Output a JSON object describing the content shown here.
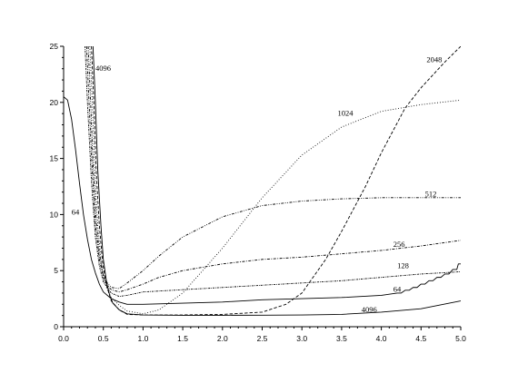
{
  "chart_data": {
    "type": "line",
    "title": "",
    "xlabel": "",
    "ylabel": "",
    "xlim": [
      0,
      5
    ],
    "ylim": [
      0,
      25
    ],
    "xticks": [
      "0.0",
      "0.5",
      "1.0",
      "1.5",
      "2.0",
      "2.5",
      "3.0",
      "3.5",
      "4.0",
      "4.5",
      "5.0"
    ],
    "yticks": [
      "0",
      "5",
      "10",
      "15",
      "20",
      "25"
    ],
    "grid": false,
    "legend": "none",
    "series": [
      {
        "name": "64",
        "dash": "solid",
        "label_text": "64",
        "points": [
          [
            0.0,
            20.5
          ],
          [
            0.05,
            20.2
          ],
          [
            0.1,
            18.5
          ],
          [
            0.15,
            15.8
          ],
          [
            0.2,
            12.8
          ],
          [
            0.25,
            10.0
          ],
          [
            0.3,
            7.8
          ],
          [
            0.35,
            6.0
          ],
          [
            0.4,
            4.8
          ],
          [
            0.45,
            3.8
          ],
          [
            0.5,
            3.1
          ],
          [
            0.6,
            2.5
          ],
          [
            0.7,
            2.2
          ],
          [
            0.8,
            2.0
          ],
          [
            1.0,
            2.0
          ],
          [
            1.5,
            2.1
          ],
          [
            2.0,
            2.2
          ],
          [
            2.5,
            2.4
          ],
          [
            3.0,
            2.5
          ],
          [
            3.5,
            2.6
          ],
          [
            4.0,
            2.8
          ],
          [
            4.2,
            3.0
          ],
          [
            4.25,
            3.0
          ],
          [
            4.3,
            3.25
          ],
          [
            4.35,
            3.25
          ],
          [
            4.4,
            3.5
          ],
          [
            4.45,
            3.5
          ],
          [
            4.5,
            3.8
          ],
          [
            4.55,
            3.8
          ],
          [
            4.6,
            4.1
          ],
          [
            4.65,
            4.1
          ],
          [
            4.7,
            4.4
          ],
          [
            4.75,
            4.4
          ],
          [
            4.8,
            4.7
          ],
          [
            4.85,
            4.7
          ],
          [
            4.9,
            5.1
          ],
          [
            4.95,
            5.1
          ],
          [
            4.97,
            5.6
          ],
          [
            5.0,
            5.6
          ]
        ]
      },
      {
        "name": "128",
        "dash": "dashdot-dense",
        "label_text": "128",
        "points": [
          [
            0.27,
            25
          ],
          [
            0.3,
            20.0
          ],
          [
            0.35,
            13.0
          ],
          [
            0.4,
            8.0
          ],
          [
            0.45,
            5.4
          ],
          [
            0.5,
            4.0
          ],
          [
            0.55,
            3.5
          ],
          [
            0.6,
            3.0
          ],
          [
            0.7,
            2.7
          ],
          [
            0.8,
            2.8
          ],
          [
            1.0,
            3.1
          ],
          [
            1.5,
            3.3
          ],
          [
            2.0,
            3.5
          ],
          [
            2.5,
            3.7
          ],
          [
            3.0,
            3.9
          ],
          [
            3.5,
            4.1
          ],
          [
            4.0,
            4.4
          ],
          [
            4.5,
            4.7
          ],
          [
            5.0,
            4.9
          ]
        ]
      },
      {
        "name": "256",
        "dash": "dashdot",
        "label_text": "256",
        "points": [
          [
            0.29,
            25
          ],
          [
            0.32,
            20.0
          ],
          [
            0.36,
            14.0
          ],
          [
            0.4,
            9.0
          ],
          [
            0.45,
            6.0
          ],
          [
            0.5,
            4.4
          ],
          [
            0.55,
            3.7
          ],
          [
            0.6,
            3.3
          ],
          [
            0.7,
            3.1
          ],
          [
            0.8,
            3.3
          ],
          [
            1.0,
            3.8
          ],
          [
            1.2,
            4.4
          ],
          [
            1.5,
            5.0
          ],
          [
            2.0,
            5.6
          ],
          [
            2.5,
            6.0
          ],
          [
            3.0,
            6.2
          ],
          [
            3.5,
            6.5
          ],
          [
            4.0,
            6.8
          ],
          [
            4.5,
            7.2
          ],
          [
            5.0,
            7.7
          ]
        ]
      },
      {
        "name": "512",
        "dash": "dashdotdot",
        "label_text": "512",
        "points": [
          [
            0.31,
            25
          ],
          [
            0.34,
            20.0
          ],
          [
            0.37,
            14.5
          ],
          [
            0.41,
            9.5
          ],
          [
            0.45,
            6.5
          ],
          [
            0.5,
            4.6
          ],
          [
            0.55,
            3.9
          ],
          [
            0.6,
            3.5
          ],
          [
            0.7,
            3.4
          ],
          [
            0.8,
            3.9
          ],
          [
            1.0,
            5.0
          ],
          [
            1.2,
            6.3
          ],
          [
            1.5,
            8.0
          ],
          [
            2.0,
            9.8
          ],
          [
            2.5,
            10.8
          ],
          [
            3.0,
            11.2
          ],
          [
            3.5,
            11.4
          ],
          [
            4.0,
            11.5
          ],
          [
            4.5,
            11.5
          ],
          [
            5.0,
            11.5
          ]
        ]
      },
      {
        "name": "1024",
        "dash": "dotted",
        "label_text": "1024",
        "points": [
          [
            0.33,
            25
          ],
          [
            0.36,
            20.0
          ],
          [
            0.39,
            14.0
          ],
          [
            0.43,
            9.0
          ],
          [
            0.47,
            6.0
          ],
          [
            0.5,
            4.3
          ],
          [
            0.55,
            3.3
          ],
          [
            0.6,
            2.6
          ],
          [
            0.7,
            1.9
          ],
          [
            0.8,
            1.4
          ],
          [
            1.0,
            1.15
          ],
          [
            1.2,
            1.5
          ],
          [
            1.5,
            3.0
          ],
          [
            2.0,
            7.0
          ],
          [
            2.5,
            11.5
          ],
          [
            3.0,
            15.3
          ],
          [
            3.5,
            17.8
          ],
          [
            4.0,
            19.2
          ],
          [
            4.5,
            19.8
          ],
          [
            5.0,
            20.2
          ]
        ]
      },
      {
        "name": "2048",
        "dash": "dashed",
        "label_text": "2048",
        "points": [
          [
            0.35,
            25
          ],
          [
            0.38,
            20.0
          ],
          [
            0.41,
            14.0
          ],
          [
            0.45,
            9.0
          ],
          [
            0.49,
            5.8
          ],
          [
            0.53,
            4.0
          ],
          [
            0.57,
            3.0
          ],
          [
            0.6,
            2.3
          ],
          [
            0.7,
            1.5
          ],
          [
            0.8,
            1.1
          ],
          [
            1.0,
            1.05
          ],
          [
            1.5,
            1.05
          ],
          [
            2.0,
            1.1
          ],
          [
            2.5,
            1.3
          ],
          [
            2.8,
            2.0
          ],
          [
            3.0,
            3.0
          ],
          [
            3.3,
            6.0
          ],
          [
            3.5,
            8.5
          ],
          [
            3.8,
            12.5
          ],
          [
            4.0,
            15.5
          ],
          [
            4.3,
            19.5
          ],
          [
            4.5,
            21.3
          ],
          [
            4.8,
            23.6
          ],
          [
            5.0,
            25.0
          ]
        ]
      },
      {
        "name": "4096",
        "dash": "solid",
        "label_text": "4096",
        "points": [
          [
            0.37,
            25
          ],
          [
            0.4,
            20.0
          ],
          [
            0.43,
            14.0
          ],
          [
            0.47,
            9.0
          ],
          [
            0.5,
            6.0
          ],
          [
            0.54,
            4.0
          ],
          [
            0.58,
            2.8
          ],
          [
            0.62,
            2.1
          ],
          [
            0.7,
            1.5
          ],
          [
            0.8,
            1.15
          ],
          [
            1.0,
            1.05
          ],
          [
            1.5,
            1.02
          ],
          [
            2.0,
            1.02
          ],
          [
            2.5,
            1.03
          ],
          [
            3.0,
            1.05
          ],
          [
            3.5,
            1.1
          ],
          [
            4.0,
            1.3
          ],
          [
            4.5,
            1.6
          ],
          [
            5.0,
            2.3
          ]
        ]
      }
    ],
    "annotations": [
      {
        "text": "4096",
        "x": 0.4,
        "y": 22.8
      },
      {
        "text": "64",
        "x": 0.1,
        "y": 10.0
      },
      {
        "text": "1024",
        "x": 3.45,
        "y": 18.8
      },
      {
        "text": "2048",
        "x": 4.57,
        "y": 23.6
      },
      {
        "text": "512",
        "x": 4.55,
        "y": 11.6
      },
      {
        "text": "256",
        "x": 4.15,
        "y": 7.1
      },
      {
        "text": "128",
        "x": 4.2,
        "y": 5.2
      },
      {
        "text": "64",
        "x": 4.15,
        "y": 3.1
      },
      {
        "text": "4096",
        "x": 3.75,
        "y": 1.3
      }
    ]
  }
}
